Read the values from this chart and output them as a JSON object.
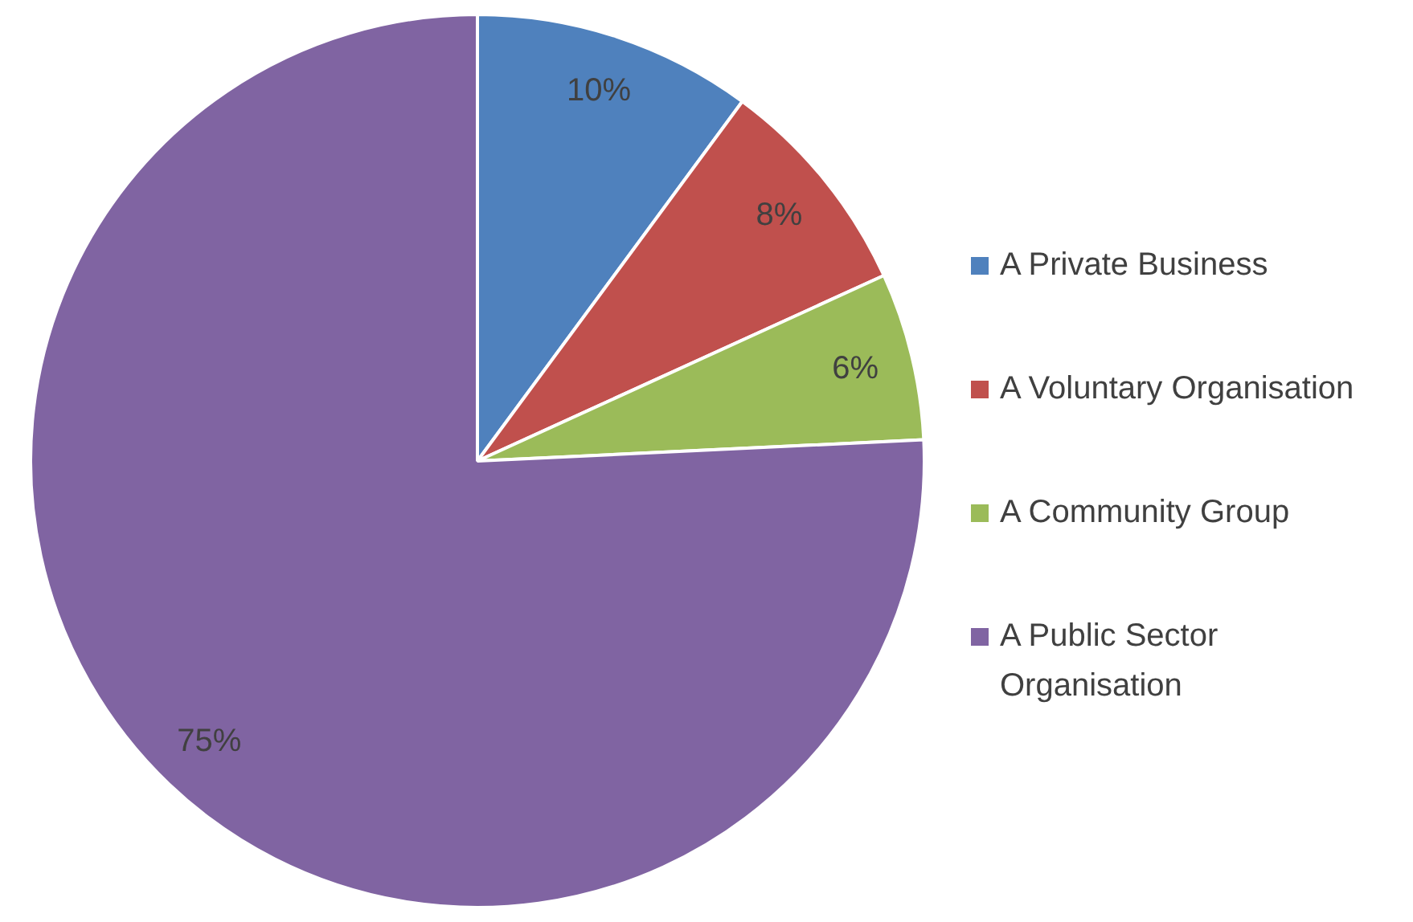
{
  "chart_data": {
    "type": "pie",
    "categories": [
      "A Private Business",
      "A Voluntary Organisation",
      "A Community Group",
      "A Public Sector Organisation"
    ],
    "values": [
      10,
      8,
      6,
      75
    ],
    "colors": [
      "#4f81bd",
      "#c0504d",
      "#9bbb59",
      "#8064a2"
    ],
    "value_labels": [
      "10%",
      "8%",
      "6%",
      "75%"
    ],
    "legend": "right"
  }
}
